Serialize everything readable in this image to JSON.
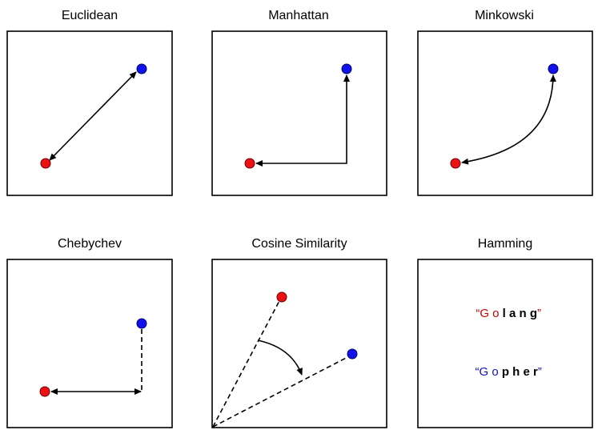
{
  "panels": {
    "euclidean": {
      "title": "Euclidean"
    },
    "manhattan": {
      "title": "Manhattan"
    },
    "minkowski": {
      "title": "Minkowski"
    },
    "chebychev": {
      "title": "Chebychev"
    },
    "cosine": {
      "title": "Cosine Similarity"
    },
    "hamming": {
      "title": "Hamming",
      "word1": {
        "open_quote": "“",
        "matching": "G o",
        "differing": " l a n g",
        "close_quote": "”",
        "color": "#cc0000"
      },
      "word2": {
        "open_quote": "“",
        "matching": "G o",
        "differing": " p h e r",
        "close_quote": "”",
        "color": "#1111cc"
      }
    }
  },
  "colors": {
    "point_a": "#ee1111",
    "point_b": "#1111ee",
    "line": "#000000"
  }
}
